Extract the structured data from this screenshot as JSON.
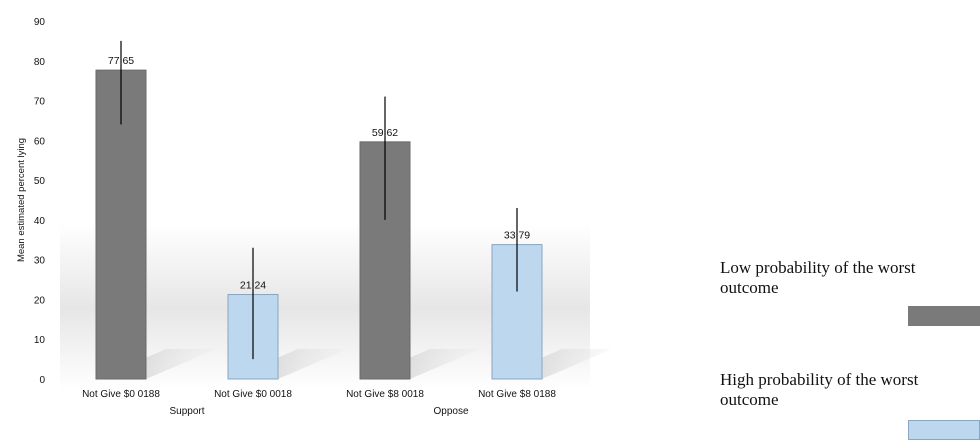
{
  "chart_data": {
    "type": "bar",
    "title": "",
    "ylabel": "Mean estimated percent lying",
    "xlabel": "",
    "ylim": [
      0,
      90
    ],
    "yticks": [
      "0",
      "10",
      "20",
      "30",
      "40",
      "50",
      "60",
      "70",
      "80",
      "90"
    ],
    "categories": [
      "Not Give $0 0188",
      "Not Give $0 0018",
      "Not Give $8 0018",
      "Not Give $8 0188"
    ],
    "groups": [
      {
        "label": "Support",
        "categories": [
          0,
          1
        ]
      },
      {
        "label": "Oppose",
        "categories": [
          2,
          3
        ]
      }
    ],
    "values": [
      77.65,
      21.24,
      59.62,
      33.79
    ],
    "value_labels": [
      "77,65",
      "21,24",
      "59,62",
      "33,79"
    ],
    "error_bars": [
      {
        "low": 64,
        "high": 85
      },
      {
        "low": 5,
        "high": 33
      },
      {
        "low": 40,
        "high": 71
      },
      {
        "low": 22,
        "high": 43
      }
    ],
    "bar_series": [
      "low",
      "high",
      "low",
      "high"
    ],
    "colors": {
      "low": "#7a7a7a",
      "high": "#bdd7ee"
    },
    "grid": false
  },
  "legend": {
    "items": [
      {
        "key": "low",
        "text": "Low probability of the worst outcome",
        "color": "#7a7a7a"
      },
      {
        "key": "high",
        "text": "High probability of the worst outcome",
        "color": "#bdd7ee"
      }
    ]
  }
}
